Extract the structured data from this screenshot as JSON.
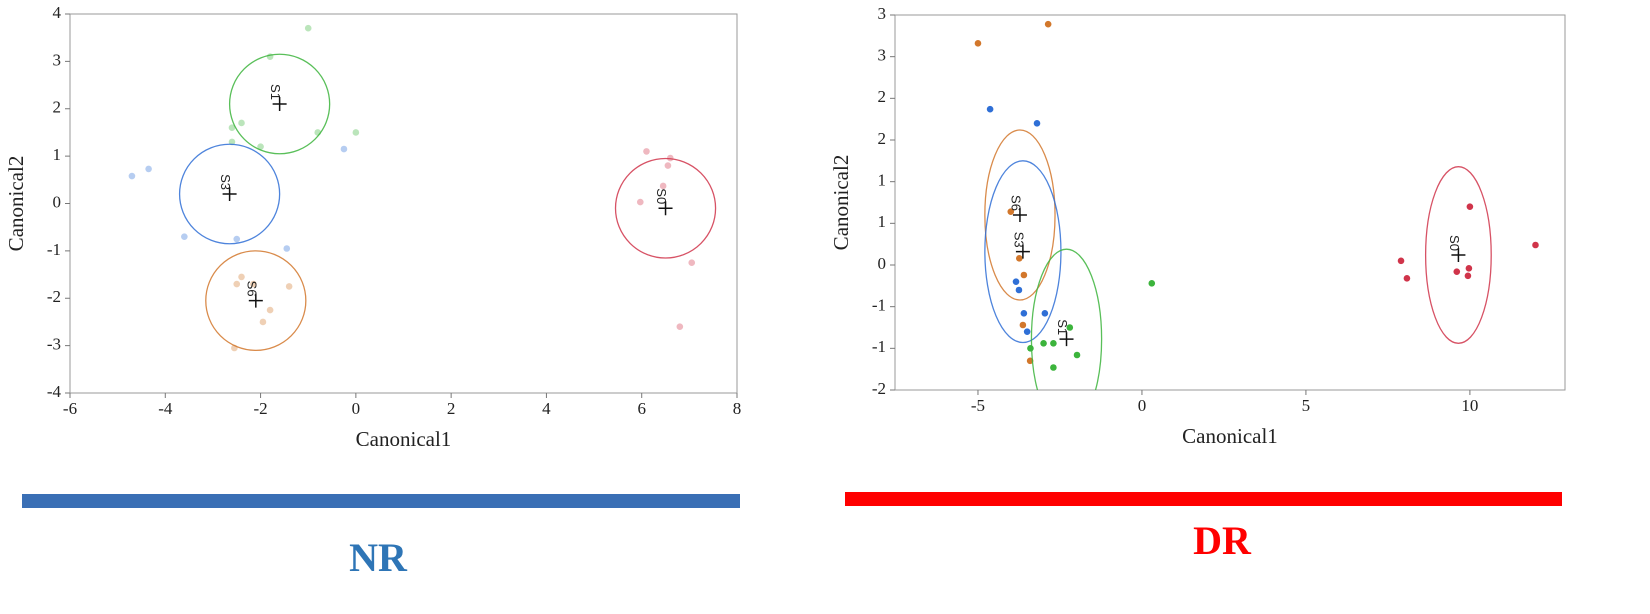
{
  "chart_data": [
    {
      "type": "scatter",
      "x_label": "Canonical1",
      "y_label": "Canonical2",
      "xlim": [
        -6,
        8
      ],
      "ylim": [
        -4,
        4
      ],
      "xticks": [
        -6,
        -4,
        -2,
        0,
        2,
        4,
        6,
        8
      ],
      "yticks": [
        -4,
        -3,
        -2,
        -1,
        0,
        1,
        2,
        3,
        4
      ],
      "point_opacity": 0.35,
      "caption": "NR",
      "caption_color": "#2e75b6",
      "bar_color": "#3a6fb5",
      "series": [
        {
          "name": "S1",
          "color": "#3cb43c",
          "x": [
            -1.0,
            -1.8,
            -2.6,
            -2.4,
            -2.0,
            -0.8,
            0.0,
            -2.6
          ],
          "y": [
            3.7,
            3.1,
            1.6,
            1.7,
            1.2,
            1.5,
            1.5,
            1.3
          ],
          "centroid_x": -1.6,
          "centroid_y": 2.1,
          "ellipse_rx": 1.05,
          "ellipse_ry": 1.05
        },
        {
          "name": "S3",
          "color": "#2f6fd6",
          "x": [
            -4.7,
            -4.35,
            -3.6,
            -2.5,
            -1.45,
            -0.25
          ],
          "y": [
            0.58,
            0.73,
            -0.7,
            -0.75,
            -0.95,
            1.15
          ],
          "centroid_x": -2.65,
          "centroid_y": 0.2,
          "ellipse_rx": 1.05,
          "ellipse_ry": 1.05
        },
        {
          "name": "S6",
          "color": "#d2772b",
          "x": [
            -2.4,
            -2.5,
            -2.15,
            -1.8,
            -1.95,
            -1.4,
            -2.55
          ],
          "y": [
            -1.55,
            -1.7,
            -1.7,
            -2.25,
            -2.5,
            -1.75,
            -3.05
          ],
          "centroid_x": -2.1,
          "centroid_y": -2.05,
          "ellipse_rx": 1.05,
          "ellipse_ry": 1.05
        },
        {
          "name": "S0",
          "color": "#d0344a",
          "x": [
            5.97,
            6.1,
            6.45,
            6.6,
            6.55,
            7.05,
            6.8
          ],
          "y": [
            0.03,
            1.1,
            0.37,
            0.96,
            0.8,
            -1.25,
            -2.6
          ],
          "centroid_x": 6.5,
          "centroid_y": -0.1,
          "ellipse_rx": 1.05,
          "ellipse_ry": 1.05
        }
      ]
    },
    {
      "type": "scatter",
      "x_label": "Canonical1",
      "y_label": "Canonical2",
      "xlim": [
        -7.53,
        12.9
      ],
      "ylim": [
        -1.5,
        3
      ],
      "xticks": [
        -5,
        0,
        5,
        10
      ],
      "yticks": [
        {
          "value": -1.5,
          "label": "-2"
        },
        {
          "value": -1,
          "label": "-1"
        },
        {
          "value": -0.5,
          "label": "-1"
        },
        0,
        {
          "value": 0.5,
          "label": "1"
        },
        1,
        {
          "value": 1.5,
          "label": "2"
        },
        2,
        {
          "value": 2.5,
          "label": "3"
        },
        3
      ],
      "point_opacity": 1,
      "caption": "DR",
      "caption_color": "#ff0000",
      "bar_color": "#ff0000",
      "series": [
        {
          "name": "S6",
          "color": "#d2772b",
          "x": [
            -5.0,
            -2.86,
            -4.0,
            -3.74,
            -3.6,
            -3.63,
            -3.41
          ],
          "y": [
            2.66,
            2.89,
            0.64,
            0.08,
            -0.12,
            -0.72,
            -1.15
          ],
          "centroid_x": -3.72,
          "centroid_y": 0.6,
          "ellipse_rx": 1.07,
          "ellipse_ry": 1.02
        },
        {
          "name": "S3",
          "color": "#2f6fd6",
          "x": [
            -4.63,
            -3.2,
            -3.84,
            -3.75,
            -3.6,
            -3.5,
            -2.96
          ],
          "y": [
            1.87,
            1.7,
            -0.2,
            -0.3,
            -0.58,
            -0.8,
            -0.58
          ],
          "centroid_x": -3.63,
          "centroid_y": 0.16,
          "ellipse_rx": 1.16,
          "ellipse_ry": 1.09
        },
        {
          "name": "S1",
          "color": "#3cb43c",
          "x": [
            0.3,
            -3.4,
            -3.0,
            -2.7,
            -2.2,
            -1.98,
            -2.7
          ],
          "y": [
            -0.22,
            -1.0,
            -0.94,
            -0.94,
            -0.75,
            -1.08,
            -1.23
          ],
          "centroid_x": -2.3,
          "centroid_y": -0.89,
          "ellipse_rx": 1.07,
          "ellipse_ry": 1.08
        },
        {
          "name": "S0",
          "color": "#d0344a",
          "x": [
            7.9,
            8.08,
            9.6,
            9.97,
            9.94,
            10.0,
            12.0
          ],
          "y": [
            0.05,
            -0.16,
            -0.08,
            -0.04,
            -0.13,
            0.7,
            0.24
          ],
          "centroid_x": 9.65,
          "centroid_y": 0.12,
          "ellipse_rx": 1.0,
          "ellipse_ry": 1.06
        }
      ]
    }
  ]
}
